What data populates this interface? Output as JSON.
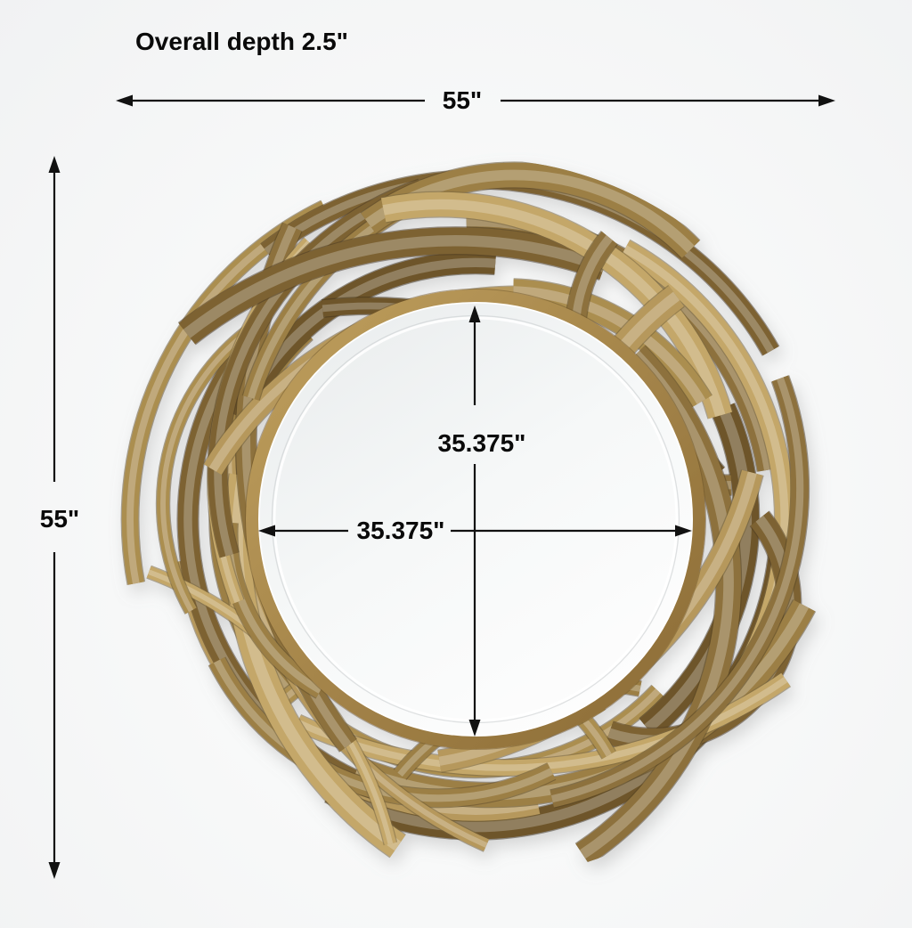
{
  "product": {
    "depth_note": "Overall depth 2.5\"",
    "overall_width": "55\"",
    "overall_height": "55\"",
    "mirror_width": "35.375\"",
    "mirror_height": "35.375\""
  },
  "colors": {
    "dimension_line": "#111111",
    "text": "#0a0a0a",
    "background": "#f2f3f4",
    "ring_gold_light": "#c0a05e",
    "ring_gold_dark": "#8a6a34",
    "glass_edge": "#e8ebec",
    "glass_center": "#fbfcfc",
    "gold_palette": [
      "#6e552a",
      "#7d6233",
      "#8d713c",
      "#9c7f45",
      "#ab8e50",
      "#b6985c",
      "#c4a769"
    ]
  }
}
